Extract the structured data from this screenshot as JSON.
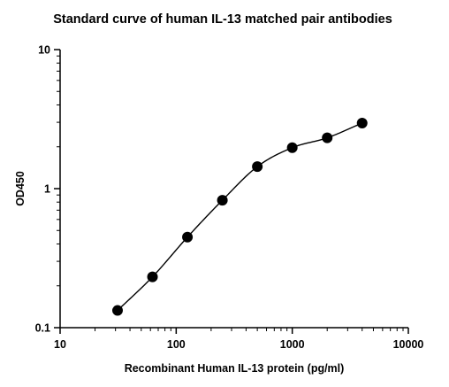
{
  "chart_data": {
    "type": "scatter",
    "title": "Standard curve of human IL-13 matched pair antibodies",
    "xlabel": "Recombinant Human IL-13 protein (pg/ml)",
    "ylabel": "OD450",
    "xscale": "log",
    "yscale": "log",
    "xlim": [
      10,
      10000
    ],
    "ylim": [
      0.1,
      10
    ],
    "xticks": [
      10,
      100,
      1000,
      10000
    ],
    "xtick_labels": [
      "10",
      "100",
      "1000",
      "10000"
    ],
    "yticks": [
      0.1,
      1,
      10
    ],
    "ytick_labels": [
      "0.1",
      "1",
      "10"
    ],
    "grid": false,
    "legend": "none",
    "marker_color": "#000000",
    "fit_curve": "sigmoidal fit (4PL)",
    "series": [
      {
        "x": [
          31.25,
          62.5,
          125,
          250,
          500,
          1000,
          2000,
          4000
        ],
        "y": [
          0.133,
          0.232,
          0.448,
          0.825,
          1.44,
          1.97,
          2.32,
          2.96
        ]
      }
    ]
  }
}
